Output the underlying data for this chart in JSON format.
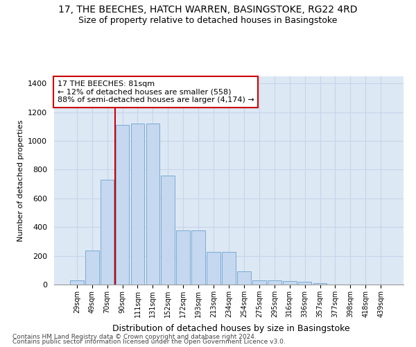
{
  "title": "17, THE BEECHES, HATCH WARREN, BASINGSTOKE, RG22 4RD",
  "subtitle": "Size of property relative to detached houses in Basingstoke",
  "xlabel": "Distribution of detached houses by size in Basingstoke",
  "ylabel": "Number of detached properties",
  "bar_color": "#c5d8f0",
  "bar_edge_color": "#7aaad0",
  "categories": [
    "29sqm",
    "49sqm",
    "70sqm",
    "90sqm",
    "111sqm",
    "131sqm",
    "152sqm",
    "172sqm",
    "193sqm",
    "213sqm",
    "234sqm",
    "254sqm",
    "275sqm",
    "295sqm",
    "316sqm",
    "336sqm",
    "357sqm",
    "377sqm",
    "398sqm",
    "418sqm",
    "439sqm"
  ],
  "values": [
    30,
    235,
    730,
    1110,
    1120,
    1120,
    760,
    375,
    375,
    225,
    225,
    90,
    30,
    28,
    25,
    18,
    12,
    0,
    0,
    0,
    0
  ],
  "ylim": [
    0,
    1450
  ],
  "yticks": [
    0,
    200,
    400,
    600,
    800,
    1000,
    1200,
    1400
  ],
  "vline_color": "#cc0000",
  "vline_x": 2.5,
  "annotation_text": "17 THE BEECHES: 81sqm\n← 12% of detached houses are smaller (558)\n88% of semi-detached houses are larger (4,174) →",
  "annotation_box_color": "#cc0000",
  "footer_line1": "Contains HM Land Registry data © Crown copyright and database right 2024.",
  "footer_line2": "Contains public sector information licensed under the Open Government Licence v3.0.",
  "grid_color": "#c8d4e8",
  "plot_background": "#dde8f5"
}
